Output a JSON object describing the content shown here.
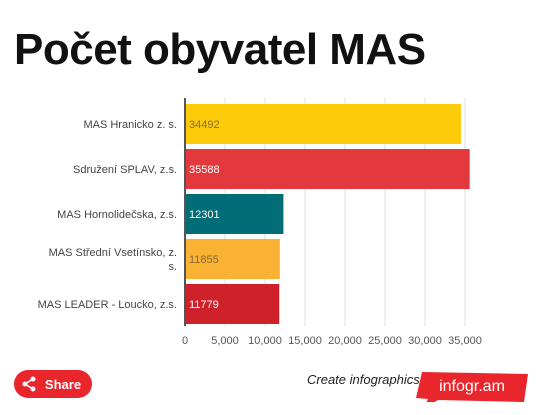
{
  "title": "Počet obyvatel MAS",
  "colors": {
    "axis": "#555555",
    "grid": "#dddddd",
    "tick_text": "#555555",
    "brand": "#e8262c"
  },
  "chart_data": {
    "type": "bar",
    "orientation": "horizontal",
    "categories": [
      "MAS Hranicko z. s.",
      "Sdružení SPLAV, z.s.",
      "MAS Hornolidečska, z.s.",
      "MAS Střední Vsetínsko, z. s.",
      "MAS LEADER - Loucko, z.s."
    ],
    "values": [
      34492,
      35588,
      12301,
      11855,
      11779
    ],
    "value_labels": [
      "34492",
      "35588",
      "12301",
      "11855",
      "11779"
    ],
    "bar_colors": [
      "#fdcb0a",
      "#e3393c",
      "#016d76",
      "#f9b233",
      "#cf2129"
    ],
    "label_colors": [
      "#8a7020",
      "#ffffff",
      "#ffffff",
      "#8a6a30",
      "#ffffff"
    ],
    "xlim": [
      0,
      37000
    ],
    "x_ticks": [
      0,
      5000,
      10000,
      15000,
      20000,
      25000,
      30000,
      35000
    ],
    "x_tick_labels": [
      "0",
      "5,000",
      "10,000",
      "15,000",
      "20,000",
      "25,000",
      "30,000",
      "35,000"
    ],
    "grid": true,
    "legend": "none"
  },
  "footer": {
    "share_label": "Share",
    "create_text": "Create infographics",
    "brand_text": "infogr.am",
    "share_icon": "share-icon"
  }
}
